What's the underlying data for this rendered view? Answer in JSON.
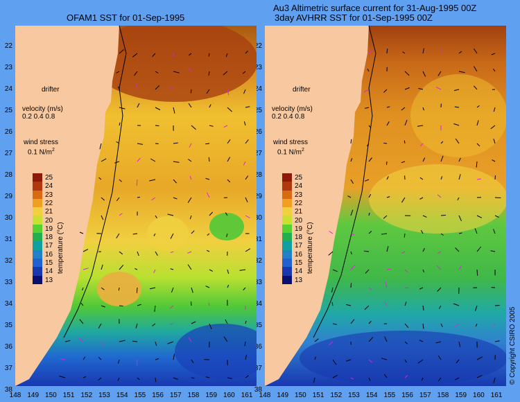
{
  "titles": {
    "left": "OFAM1 SST for 01-Sep-1995",
    "right_line1": "Au3 Altimetric surface current for 31-Aug-1995 00Z",
    "right_line2": "3day AVHRR SST for 01-Sep-1995 00Z"
  },
  "latitude_labels": [
    "22",
    "23",
    "24",
    "25",
    "26",
    "27",
    "28",
    "29",
    "30",
    "31",
    "32",
    "33",
    "34",
    "35",
    "36",
    "37",
    "38"
  ],
  "longitude_labels_left": [
    "148",
    "149",
    "150",
    "151",
    "152",
    "153",
    "154",
    "155",
    "156",
    "157",
    "158",
    "159",
    "160",
    "161"
  ],
  "longitude_labels_right": [
    "148",
    "149",
    "150",
    "151",
    "152",
    "153",
    "154",
    "155",
    "156",
    "157",
    "158",
    "159",
    "160",
    "161"
  ],
  "legend": {
    "drifter": "drifter",
    "velocity_title": "velocity (m/s)",
    "velocity_scale": "0.2 0.4 0.8",
    "wind_title": "wind stress",
    "wind_value": "0.1 N/m",
    "wind_sup": "2"
  },
  "colorbar": {
    "title": "temperature (°C)",
    "labels": [
      "25",
      "24",
      "23",
      "22",
      "21",
      "20",
      "19",
      "18",
      "17",
      "16",
      "15",
      "14",
      "13"
    ],
    "colors": [
      "#8b1a0a",
      "#b0380e",
      "#d86a10",
      "#f0a020",
      "#f0d040",
      "#c8e030",
      "#58d030",
      "#20b050",
      "#10a0a0",
      "#2080c8",
      "#2060d0",
      "#1838b0",
      "#0a1070"
    ]
  },
  "copyright": "© Copyright CSIRO 2005"
}
